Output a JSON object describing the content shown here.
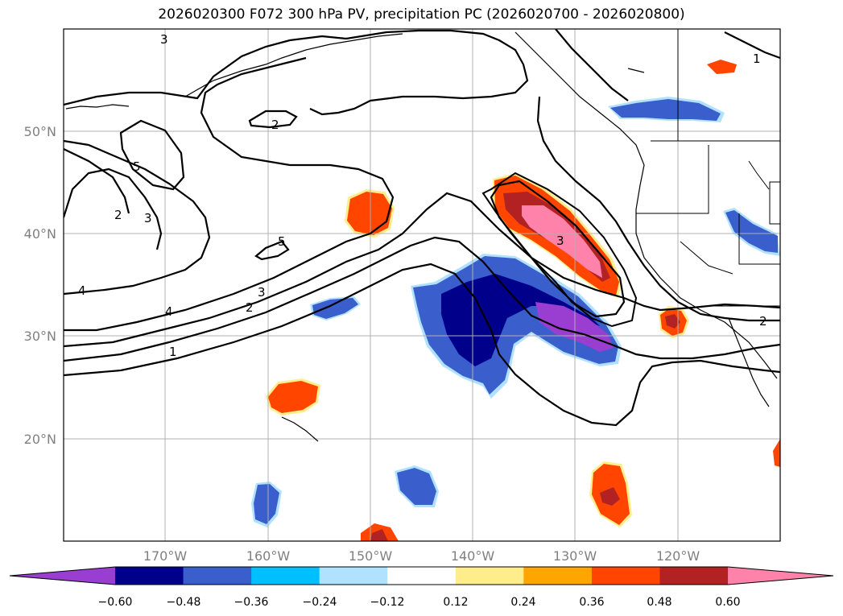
{
  "title": "2026020300 F072 300 hPa PV, precipitation PC (2026020700 - 2026020800)",
  "map": {
    "lon_labels": [
      "170°W",
      "160°W",
      "150°W",
      "140°W",
      "130°W",
      "120°W"
    ],
    "lat_labels": [
      "50°N",
      "40°N",
      "30°N",
      "20°N"
    ],
    "pv_contour_labels": [
      "3",
      "2",
      "5",
      "2",
      "3",
      "4",
      "5",
      "4",
      "3",
      "2",
      "1",
      "3",
      "1",
      "2"
    ]
  },
  "colorbar": {
    "ticks": [
      "−0.60",
      "−0.48",
      "−0.36",
      "−0.24",
      "−0.12",
      "0.12",
      "0.24",
      "0.36",
      "0.48",
      "0.60"
    ],
    "colors": [
      "#9a3dd1",
      "#00008b",
      "#3a5fcd",
      "#00bfff",
      "#b0e2ff",
      "#ffffff",
      "#ffec8b",
      "#ffa500",
      "#ff4500",
      "#b22222",
      "#ff82ab"
    ]
  }
}
